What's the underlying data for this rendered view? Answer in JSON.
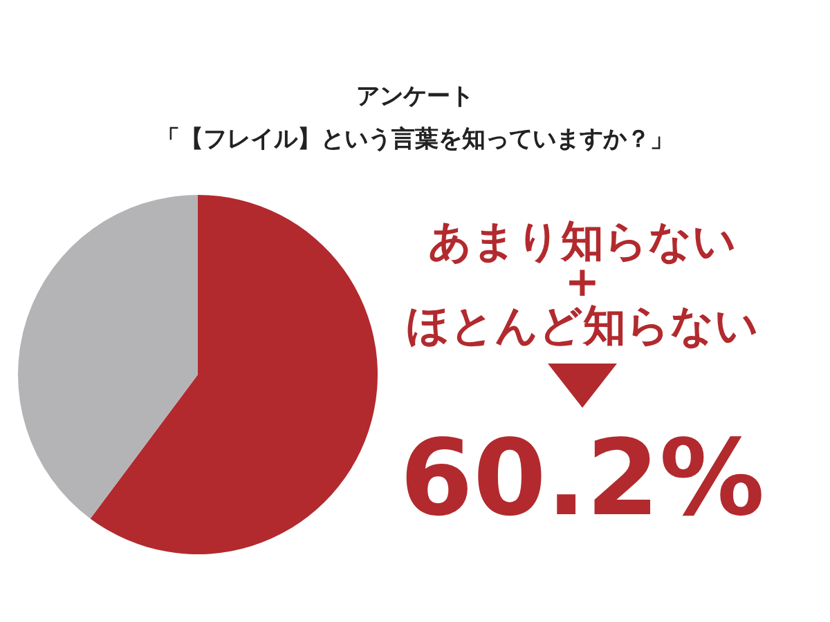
{
  "chart_data": {
    "type": "pie",
    "title": "アンケート",
    "subtitle": "「【フレイル】という言葉を知っていますか？」",
    "categories": [
      null,
      null
    ],
    "values": [
      60.2,
      39.8
    ],
    "colors": [
      "#b22a2e",
      "#b4b4b7"
    ],
    "annotations": [
      "あまり知らない\n+\nほとんど知らない",
      "60.2%"
    ]
  }
}
